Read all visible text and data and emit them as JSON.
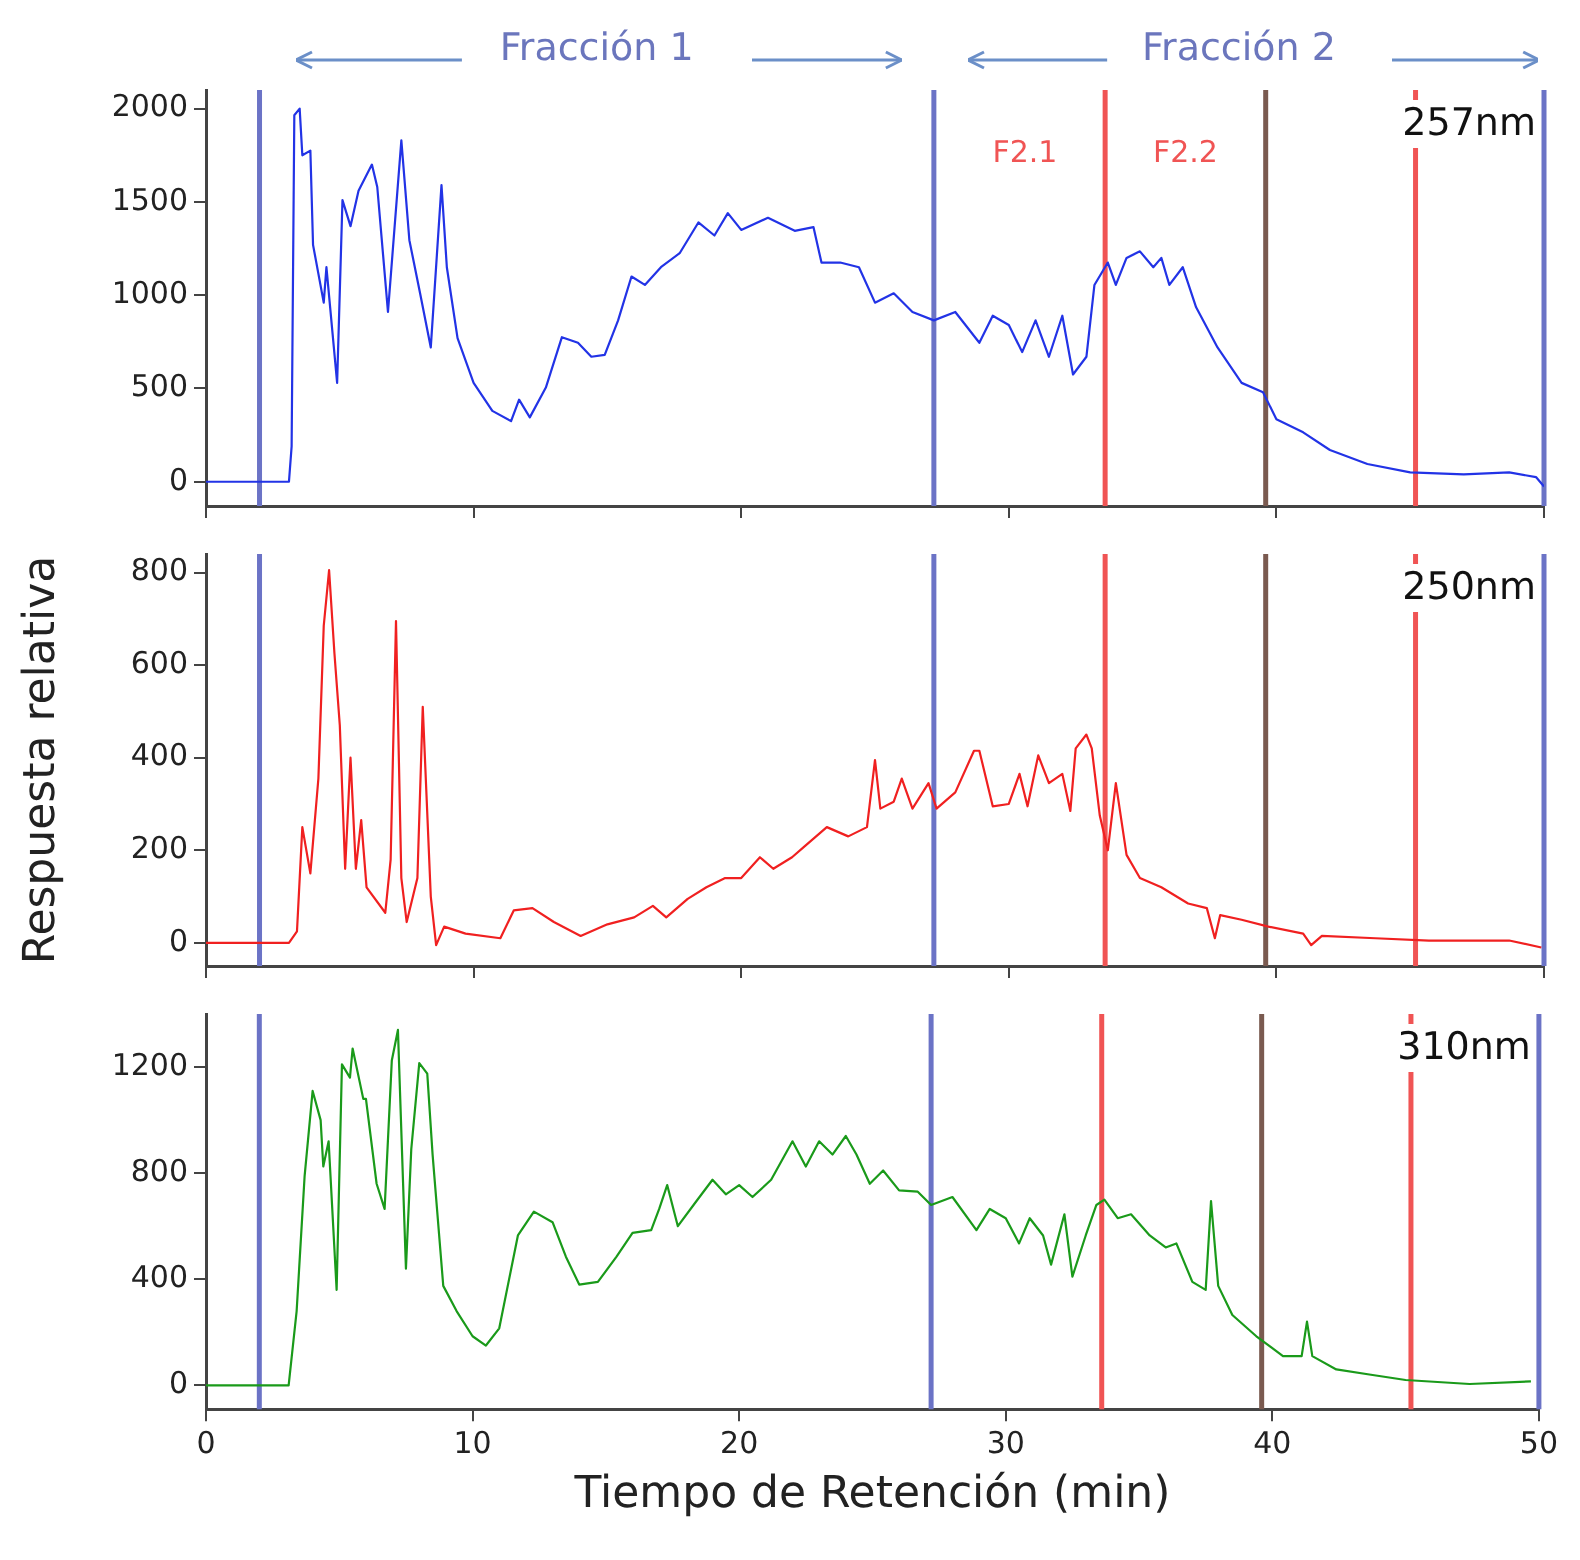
{
  "chart_data": [
    {
      "type": "line",
      "title": "257nm",
      "annotations": [
        "Fracción 1",
        "Fracción 2",
        "F2.1",
        "F2.2"
      ],
      "xlim": [
        0,
        50
      ],
      "xticks": [
        0,
        10,
        20,
        30,
        40,
        50
      ],
      "ylim": [
        -130,
        2100
      ],
      "yticks": [
        0,
        500,
        1000,
        1500,
        2000
      ],
      "tick_labels": "y",
      "marker": "none",
      "color": "#2233e6",
      "x": [
        0,
        3.1,
        3.2,
        3.3,
        3.5,
        3.6,
        3.9,
        4.0,
        4.4,
        4.5,
        4.9,
        5.1,
        5.4,
        5.7,
        6.2,
        6.4,
        6.8,
        7.3,
        7.6,
        8.0,
        8.4,
        8.8,
        9.0,
        9.4,
        10.0,
        10.7,
        11.4,
        11.7,
        12.1,
        12.7,
        13.3,
        13.9,
        14.4,
        14.9,
        15.4,
        15.9,
        16.4,
        17.0,
        17.7,
        18.4,
        19.0,
        19.5,
        20.0,
        21.0,
        22.0,
        22.7,
        23.0,
        23.7,
        24.4,
        25.0,
        25.7,
        26.4,
        27.2,
        28.0,
        28.9,
        29.4,
        30.0,
        30.5,
        31.0,
        31.5,
        32.0,
        32.4,
        32.9,
        33.2,
        33.7,
        34.0,
        34.4,
        34.9,
        35.4,
        35.7,
        36.0,
        36.5,
        37.0,
        37.8,
        38.7,
        39.5,
        40.0,
        41.0,
        42.0,
        43.4,
        45.0,
        47.0,
        48.7,
        49.7,
        50.0
      ],
      "values": [
        0,
        0,
        190,
        1965,
        2000,
        1750,
        1775,
        1270,
        960,
        1150,
        530,
        1510,
        1370,
        1560,
        1700,
        1580,
        910,
        1830,
        1295,
        1010,
        720,
        1590,
        1150,
        770,
        530,
        380,
        325,
        440,
        345,
        505,
        775,
        745,
        670,
        680,
        865,
        1100,
        1055,
        1150,
        1225,
        1390,
        1320,
        1440,
        1350,
        1415,
        1345,
        1365,
        1175,
        1175,
        1150,
        960,
        1010,
        910,
        865,
        910,
        745,
        890,
        840,
        695,
        865,
        670,
        890,
        575,
        670,
        1055,
        1175,
        1055,
        1200,
        1235,
        1150,
        1200,
        1055,
        1150,
        935,
        720,
        530,
        480,
        335,
        265,
        170,
        95,
        50,
        40,
        50,
        25,
        -25
      ],
      "ref_lines": [
        {
          "axis": "x",
          "value": 2,
          "color": "#6b73c6"
        },
        {
          "axis": "x",
          "value": 27.2,
          "color": "#6b73c6"
        },
        {
          "axis": "x",
          "value": 33.6,
          "color": "#f05454"
        },
        {
          "axis": "x",
          "value": 39.6,
          "color": "#7a5a50"
        },
        {
          "axis": "x",
          "value": 45.2,
          "color": "#f05454"
        },
        {
          "axis": "x",
          "value": 50,
          "color": "#6b73c6"
        }
      ]
    },
    {
      "type": "line",
      "title": "250nm",
      "ylabel": "Respuesta relativa",
      "xlim": [
        0,
        50
      ],
      "xticks": [
        0,
        10,
        20,
        30,
        40,
        50
      ],
      "ylim": [
        -50,
        840
      ],
      "yticks": [
        0,
        200,
        400,
        600,
        800
      ],
      "tick_labels": "y",
      "marker": "none",
      "color": "#f02020",
      "x": [
        0,
        3.1,
        3.4,
        3.6,
        3.9,
        4.2,
        4.4,
        4.6,
        4.8,
        5.0,
        5.2,
        5.4,
        5.6,
        5.8,
        6.0,
        6.7,
        6.9,
        7.1,
        7.3,
        7.5,
        7.9,
        8.1,
        8.4,
        8.6,
        8.9,
        9.7,
        11.0,
        11.5,
        12.2,
        13.0,
        14.0,
        15.0,
        16.0,
        16.7,
        17.2,
        18.0,
        18.7,
        19.4,
        20.0,
        20.7,
        21.2,
        21.9,
        22.4,
        23.2,
        24.0,
        24.7,
        25.0,
        25.2,
        25.7,
        26.0,
        26.4,
        27.0,
        27.3,
        28.0,
        28.7,
        28.9,
        29.4,
        30.0,
        30.4,
        30.7,
        31.1,
        31.5,
        32.0,
        32.3,
        32.5,
        32.9,
        33.1,
        33.4,
        33.7,
        34.0,
        34.4,
        34.9,
        35.7,
        36.7,
        37.4,
        37.7,
        37.9,
        38.7,
        39.7,
        41.0,
        41.3,
        41.7,
        43.7,
        45.7,
        48.7,
        49.9
      ],
      "values": [
        0,
        0,
        25,
        250,
        150,
        355,
        685,
        805,
        625,
        470,
        160,
        400,
        160,
        265,
        120,
        65,
        180,
        695,
        140,
        45,
        140,
        510,
        100,
        -5,
        35,
        20,
        10,
        70,
        75,
        45,
        15,
        40,
        55,
        80,
        55,
        95,
        120,
        140,
        140,
        185,
        160,
        185,
        210,
        250,
        230,
        250,
        395,
        290,
        305,
        355,
        290,
        345,
        290,
        325,
        415,
        415,
        295,
        300,
        365,
        295,
        405,
        345,
        365,
        285,
        420,
        450,
        420,
        275,
        200,
        345,
        190,
        140,
        120,
        85,
        75,
        10,
        60,
        50,
        35,
        20,
        -5,
        15,
        10,
        5,
        5,
        -10
      ],
      "ref_lines": [
        {
          "axis": "x",
          "value": 2,
          "color": "#6b73c6"
        },
        {
          "axis": "x",
          "value": 27.2,
          "color": "#6b73c6"
        },
        {
          "axis": "x",
          "value": 33.6,
          "color": "#f05454"
        },
        {
          "axis": "x",
          "value": 39.6,
          "color": "#7a5a50"
        },
        {
          "axis": "x",
          "value": 45.2,
          "color": "#f05454"
        },
        {
          "axis": "x",
          "value": 50,
          "color": "#6b73c6"
        }
      ]
    },
    {
      "type": "line",
      "title": "310nm",
      "xlabel": "Tiempo de Retención (min)",
      "xlim": [
        0,
        50
      ],
      "xticks": [
        0,
        10,
        20,
        30,
        40,
        50
      ],
      "ylim": [
        -90,
        1400
      ],
      "yticks": [
        0,
        400,
        800,
        1200
      ],
      "marker": "none",
      "color": "#1a9a1a",
      "x": [
        0,
        3.1,
        3.4,
        3.7,
        4.0,
        4.3,
        4.4,
        4.6,
        4.9,
        5.1,
        5.4,
        5.5,
        5.9,
        6.0,
        6.4,
        6.7,
        6.97,
        7.2,
        7.5,
        7.7,
        8.0,
        8.3,
        8.5,
        8.9,
        9.4,
        10.0,
        10.5,
        11.0,
        11.7,
        12.3,
        13.0,
        13.5,
        14.0,
        14.7,
        15.4,
        16.0,
        16.7,
        17.0,
        17.3,
        17.7,
        18.4,
        19.0,
        19.5,
        20.0,
        20.5,
        21.2,
        22.0,
        22.5,
        23.0,
        23.5,
        24.0,
        24.4,
        24.9,
        25.4,
        26.0,
        26.7,
        27.2,
        28.0,
        28.9,
        29.4,
        30.0,
        30.5,
        30.9,
        31.4,
        31.7,
        32.2,
        32.5,
        33.0,
        33.4,
        33.7,
        34.2,
        34.7,
        35.4,
        36.0,
        36.4,
        37.0,
        37.5,
        37.7,
        37.97,
        38.5,
        39.4,
        40.4,
        41.1,
        41.3,
        41.5,
        42.4,
        43.7,
        45.0,
        47.4,
        49.7
      ],
      "values": [
        0,
        0,
        280,
        790,
        1110,
        1000,
        825,
        920,
        360,
        1210,
        1160,
        1270,
        1080,
        1080,
        760,
        665,
        1225,
        1340,
        440,
        890,
        1215,
        1175,
        870,
        375,
        280,
        185,
        150,
        215,
        565,
        655,
        615,
        485,
        380,
        390,
        485,
        575,
        585,
        665,
        755,
        600,
        695,
        775,
        720,
        755,
        710,
        775,
        920,
        825,
        920,
        870,
        940,
        870,
        760,
        810,
        735,
        730,
        680,
        710,
        585,
        665,
        630,
        535,
        630,
        565,
        455,
        645,
        410,
        565,
        680,
        700,
        630,
        645,
        565,
        520,
        535,
        390,
        360,
        695,
        375,
        265,
        185,
        110,
        110,
        240,
        110,
        60,
        40,
        20,
        5,
        15
      ],
      "ref_lines": [
        {
          "axis": "x",
          "value": 2,
          "color": "#6b73c6"
        },
        {
          "axis": "x",
          "value": 27.2,
          "color": "#6b73c6"
        },
        {
          "axis": "x",
          "value": 33.6,
          "color": "#f05454"
        },
        {
          "axis": "x",
          "value": 39.6,
          "color": "#7a5a50"
        },
        {
          "axis": "x",
          "value": 45.2,
          "color": "#f05454"
        },
        {
          "axis": "x",
          "value": 50,
          "color": "#6b73c6"
        }
      ]
    }
  ]
}
